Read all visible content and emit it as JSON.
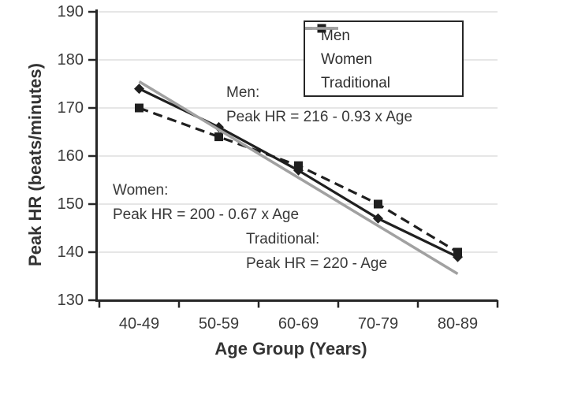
{
  "chart_data": {
    "type": "line",
    "title": "",
    "xlabel": "Age Group (Years)",
    "ylabel": "Peak HR (beats/minutes)",
    "categories": [
      "40-49",
      "50-59",
      "60-69",
      "70-79",
      "80-89"
    ],
    "series": [
      {
        "name": "Men",
        "values": [
          174,
          166,
          157,
          147,
          139
        ],
        "color": "#1f1f1f",
        "style": "solid",
        "marker": "diamond"
      },
      {
        "name": "Women",
        "values": [
          170,
          164,
          158,
          150,
          140
        ],
        "color": "#1f1f1f",
        "style": "dashed",
        "marker": "square"
      },
      {
        "name": "Traditional",
        "values": [
          175.5,
          165.5,
          155.5,
          145.5,
          135.5
        ],
        "color": "#a1a1a1",
        "style": "solid",
        "marker": "none"
      }
    ],
    "ylim": [
      130,
      190
    ],
    "yticks": [
      190,
      180,
      170,
      160,
      150,
      140,
      130
    ],
    "grid": "horizontal",
    "legend_position": "top-right",
    "grid_color": "#d6d6d6",
    "axis_color": "#262626"
  },
  "annotations": [
    {
      "title": "Men:",
      "formula": "Peak HR = 216 - 0.93 x Age"
    },
    {
      "title": "Women:",
      "formula": "Peak HR = 200 - 0.67 x Age"
    },
    {
      "title": "Traditional:",
      "formula": "Peak HR = 220 - Age"
    }
  ]
}
